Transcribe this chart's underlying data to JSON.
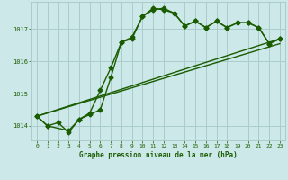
{
  "title": "Graphe pression niveau de la mer (hPa)",
  "bg_color": "#cce8e8",
  "grid_color": "#aacccc",
  "line_color": "#1a5c00",
  "xlim": [
    -0.5,
    23.5
  ],
  "ylim": [
    1013.55,
    1017.85
  ],
  "yticks": [
    1014,
    1015,
    1016,
    1017
  ],
  "xticks": [
    0,
    1,
    2,
    3,
    4,
    5,
    6,
    7,
    8,
    9,
    10,
    11,
    12,
    13,
    14,
    15,
    16,
    17,
    18,
    19,
    20,
    21,
    22,
    23
  ],
  "series1_x": [
    0,
    1,
    2,
    3,
    4,
    5,
    6,
    7,
    8,
    9,
    10,
    11,
    12,
    13,
    14,
    15,
    16,
    17,
    18,
    19,
    20,
    21,
    22,
    23
  ],
  "series1_y": [
    1014.3,
    1014.0,
    1014.1,
    1013.8,
    1014.2,
    1014.4,
    1015.1,
    1015.8,
    1016.6,
    1016.7,
    1017.4,
    1017.65,
    1017.6,
    1017.5,
    1017.1,
    1017.25,
    1017.05,
    1017.25,
    1017.05,
    1017.2,
    1017.2,
    1017.05,
    1016.55,
    1016.7
  ],
  "series2_x": [
    0,
    1,
    3,
    4,
    5,
    6,
    7,
    8,
    9,
    10,
    11,
    12,
    13,
    14,
    15,
    16,
    17,
    18,
    19,
    20,
    21,
    22,
    23
  ],
  "series2_y": [
    1014.3,
    1014.0,
    1013.85,
    1014.2,
    1014.35,
    1014.5,
    1015.5,
    1016.6,
    1016.75,
    1017.4,
    1017.6,
    1017.65,
    1017.5,
    1017.1,
    1017.25,
    1017.05,
    1017.25,
    1017.05,
    1017.2,
    1017.2,
    1017.05,
    1016.55,
    1016.7
  ],
  "line1_x": [
    0,
    23
  ],
  "line1_y": [
    1014.3,
    1016.7
  ],
  "line2_x": [
    0,
    23
  ],
  "line2_y": [
    1014.3,
    1016.55
  ],
  "marker_style": "D",
  "marker_size": 2.5,
  "linewidth": 1.0
}
